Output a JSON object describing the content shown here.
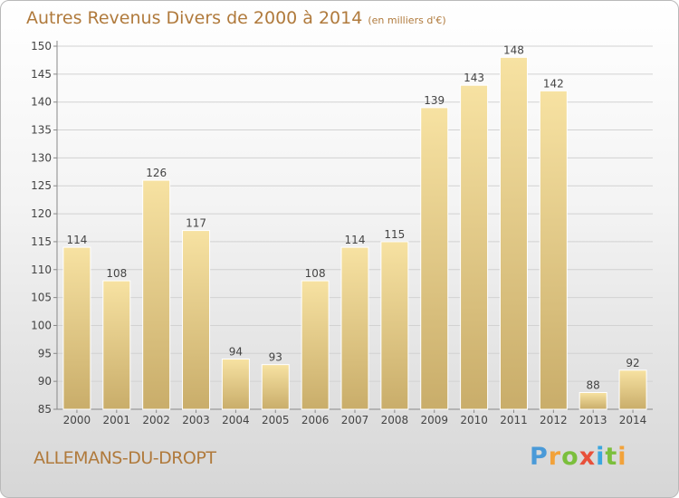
{
  "chart_data": {
    "type": "bar",
    "title": "Autres Revenus Divers de 2000 à 2014",
    "subtitle": "(en milliers d'€)",
    "categories": [
      "2000",
      "2001",
      "2002",
      "2003",
      "2004",
      "2005",
      "2006",
      "2007",
      "2008",
      "2009",
      "2010",
      "2011",
      "2012",
      "2013",
      "2014"
    ],
    "values": [
      114,
      108,
      126,
      117,
      94,
      93,
      108,
      114,
      115,
      139,
      143,
      148,
      142,
      88,
      92
    ],
    "ylim": [
      85,
      150
    ],
    "yticks": [
      85,
      90,
      95,
      100,
      105,
      110,
      115,
      120,
      125,
      130,
      135,
      140,
      145,
      150
    ],
    "grid": true,
    "bar_color": "#e8cf86"
  },
  "location": "ALLEMANS-DU-DROPT",
  "brand": {
    "letters": [
      "P",
      "r",
      "o",
      "x",
      "i",
      "t",
      "i"
    ],
    "colors": [
      "#4a9ad8",
      "#f2a23a",
      "#7bbf3c",
      "#e8503a",
      "#3aa6df",
      "#7bbf3c",
      "#f2a23a"
    ]
  }
}
